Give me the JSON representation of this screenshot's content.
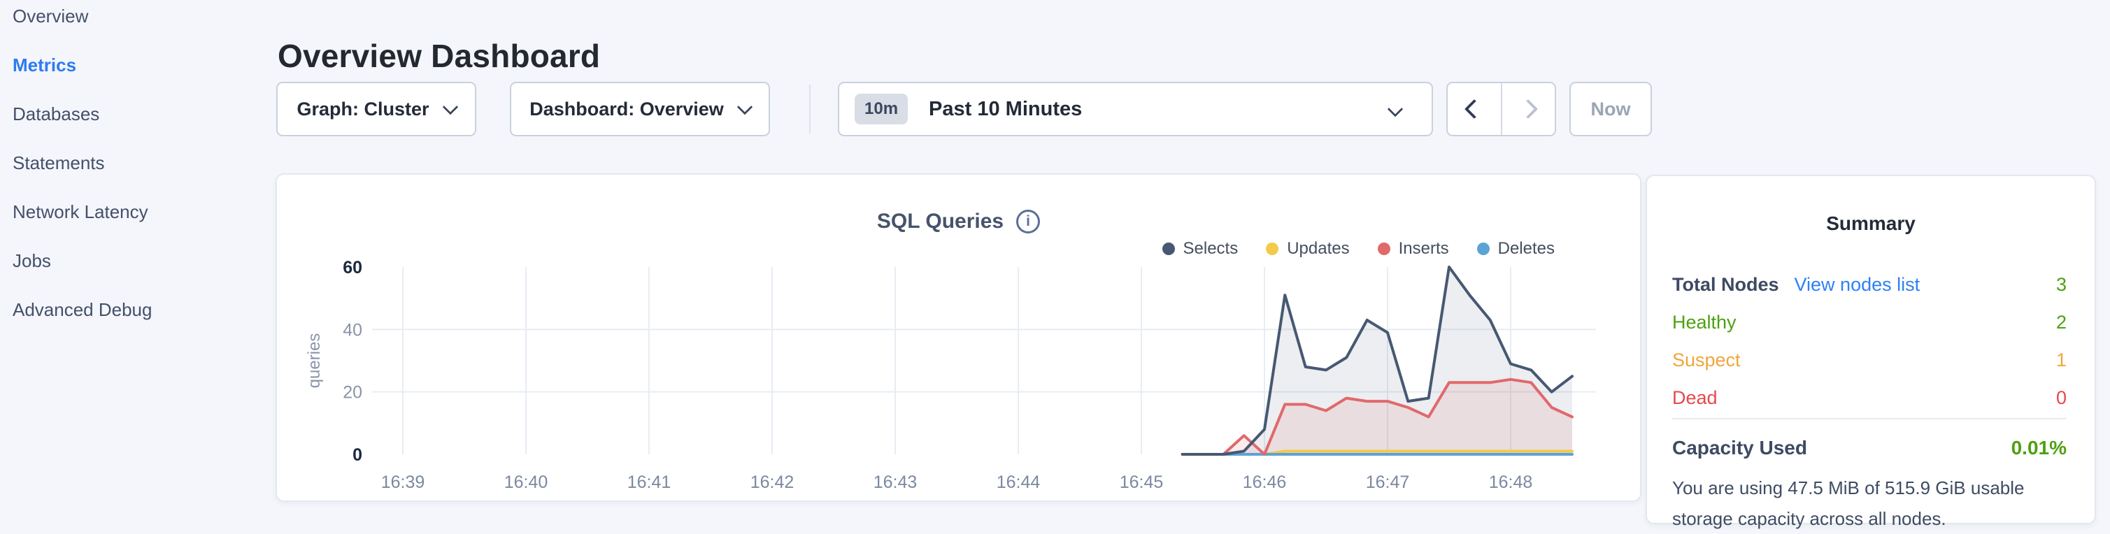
{
  "sidebar": {
    "items": [
      {
        "label": "Overview",
        "active": false
      },
      {
        "label": "Metrics",
        "active": true
      },
      {
        "label": "Databases",
        "active": false
      },
      {
        "label": "Statements",
        "active": false
      },
      {
        "label": "Network Latency",
        "active": false
      },
      {
        "label": "Jobs",
        "active": false
      },
      {
        "label": "Advanced Debug",
        "active": false
      }
    ]
  },
  "header": {
    "title": "Overview Dashboard"
  },
  "toolbar": {
    "graph_dropdown": "Graph: Cluster",
    "dashboard_dropdown": "Dashboard: Overview",
    "time_range": {
      "badge": "10m",
      "label": "Past 10 Minutes"
    },
    "now_label": "Now",
    "icons": {
      "dropdown": "chevron-down",
      "prev": "chevron-left",
      "next": "chevron-right"
    }
  },
  "chart_data": {
    "type": "area",
    "title": "SQL Queries",
    "title_icon": "info-circle-icon",
    "xlabel": "",
    "ylabel": "queries",
    "x_tick_labels": [
      "16:39",
      "16:40",
      "16:41",
      "16:42",
      "16:43",
      "16:44",
      "16:45",
      "16:46",
      "16:47",
      "16:48"
    ],
    "y_ticks": [
      0,
      20,
      40,
      60
    ],
    "ylim": [
      0,
      60
    ],
    "grid": true,
    "legend_position": "top-right",
    "series_start": "16:45:20",
    "series_interval_seconds": 10,
    "series": [
      {
        "name": "Selects",
        "color": "#475872",
        "fill": "rgba(71,88,114,0.10)",
        "values": [
          0,
          0,
          0,
          1,
          8,
          51,
          28,
          27,
          31,
          43,
          39,
          17,
          18,
          60,
          51,
          43,
          29,
          27,
          20,
          25
        ]
      },
      {
        "name": "Updates",
        "color": "#f2cb4a",
        "fill": "rgba(242,203,74,0.25)",
        "values": [
          0,
          0,
          0,
          0,
          0,
          1,
          1,
          1,
          1,
          1,
          1,
          1,
          1,
          1,
          1,
          1,
          1,
          1,
          1,
          1
        ]
      },
      {
        "name": "Inserts",
        "color": "#e0696b",
        "fill": "rgba(224,108,110,0.13)",
        "values": [
          0,
          0,
          0,
          6,
          0,
          16,
          16,
          14,
          18,
          17,
          17,
          15,
          12,
          23,
          23,
          23,
          24,
          23,
          15,
          12
        ]
      },
      {
        "name": "Deletes",
        "color": "#5ba3d6",
        "fill": "rgba(91,163,214,0.0)",
        "values": [
          0,
          0,
          0,
          0,
          0,
          0,
          0,
          0,
          0,
          0,
          0,
          0,
          0,
          0,
          0,
          0,
          0,
          0,
          0,
          0
        ]
      }
    ]
  },
  "summary": {
    "title": "Summary",
    "nodes": {
      "rows": [
        {
          "label": "Total Nodes",
          "link": "View nodes list",
          "value": "3",
          "label_color": "#3e4a63",
          "value_color": "#4ea110",
          "label_bold": true
        },
        {
          "label": "Healthy",
          "value": "2",
          "label_color": "#4ea110",
          "value_color": "#4ea110",
          "label_bold": false
        },
        {
          "label": "Suspect",
          "value": "1",
          "label_color": "#f0a63c",
          "value_color": "#f0a63c",
          "label_bold": false
        },
        {
          "label": "Dead",
          "value": "0",
          "label_color": "#e5494d",
          "value_color": "#e5494d",
          "label_bold": false
        }
      ]
    },
    "capacity": {
      "label": "Capacity Used",
      "value": "0.01%",
      "value_color": "#4ea110",
      "description": "You are using 47.5 MiB of 515.9 GiB usable storage capacity across all nodes."
    }
  },
  "colors": {
    "page_bg": "#f4f6fb",
    "active_nav": "#2c7cf0",
    "link_blue": "#2f80f5",
    "healthy_green": "#4ea110",
    "suspect_orange": "#f0a63c",
    "dead_red": "#e5494d",
    "gridline": "#e8ecf3",
    "axis_label_gray": "#8995a9",
    "axis_label_dark": "#1b2940"
  }
}
